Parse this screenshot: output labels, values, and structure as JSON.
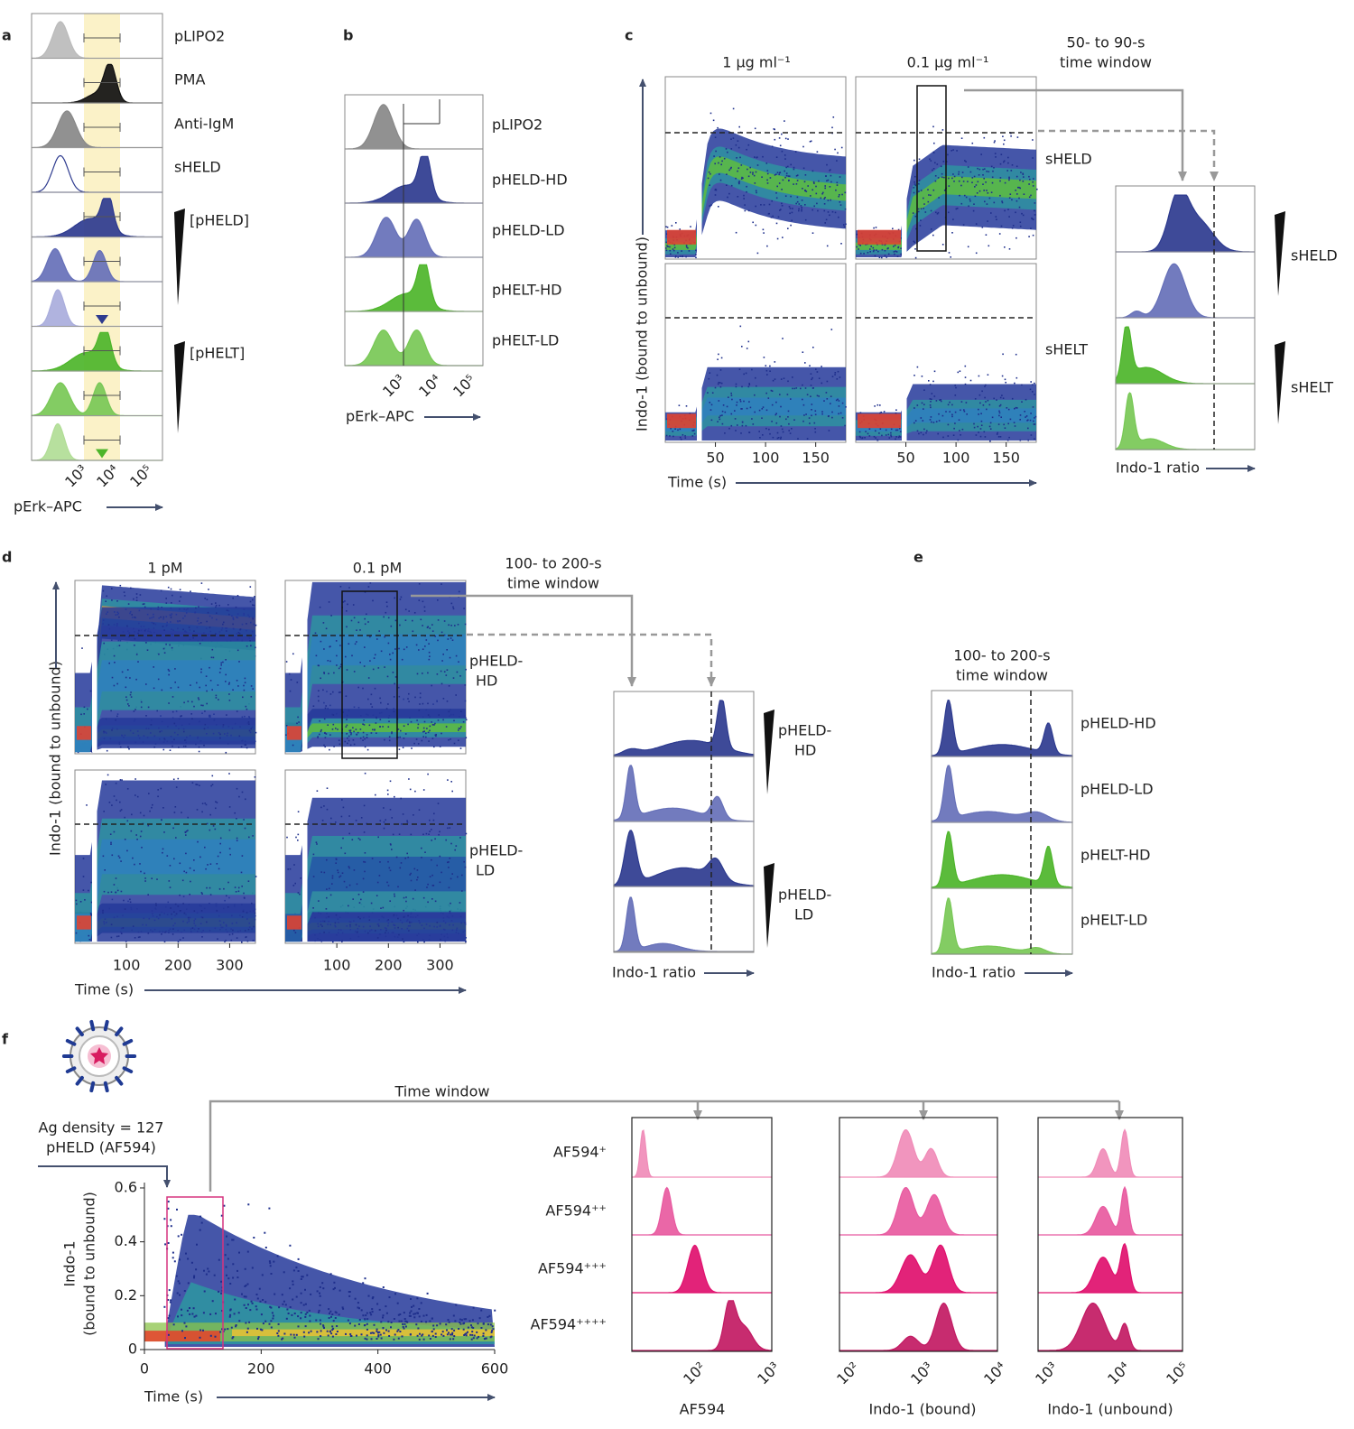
{
  "panels": {
    "a": {
      "label": "a",
      "rows": [
        "pLIPO2",
        "PMA",
        "Anti-IgM",
        "sHELD"
      ],
      "groups": [
        "[pHELD]",
        "[pHELT]"
      ],
      "xticks": [
        "10³",
        "10⁴",
        "10⁵"
      ],
      "xlabel": "pErk–APC"
    },
    "b": {
      "label": "b",
      "rows": [
        "pLIPO2",
        "pHELD-HD",
        "pHELD-LD",
        "pHELT-HD",
        "pHELT-LD"
      ],
      "xticks": [
        "10³",
        "10⁴",
        "10⁵"
      ],
      "xlabel": "pErk–APC"
    },
    "c": {
      "label": "c",
      "columns": [
        "1 μg ml⁻¹",
        "0.1 μg ml⁻¹"
      ],
      "rows": [
        "sHELD",
        "sHELT"
      ],
      "window": [
        "50- to 90-s",
        "time window"
      ],
      "ylabel": "Indo-1 (bound to unbound)",
      "xlabel": "Time (s)",
      "xlim": [
        0,
        180
      ],
      "xticks": [
        50,
        100,
        150
      ],
      "hist_xlabel": "Indo-1 ratio"
    },
    "d": {
      "label": "d",
      "columns": [
        "1 pM",
        "0.1 pM"
      ],
      "rows": [
        [
          "pHELD-",
          "HD"
        ],
        [
          "pHELD-",
          "LD"
        ]
      ],
      "window": [
        "100- to 200-s",
        "time window"
      ],
      "ylabel": "Indo-1 (bound to unbound)",
      "xlabel": "Time (s)",
      "xlim": [
        0,
        350
      ],
      "xticks": [
        100,
        200,
        300
      ],
      "hist_xlabel": "Indo-1 ratio"
    },
    "e": {
      "label": "e",
      "window": [
        "100- to 200-s",
        "time window"
      ],
      "rows": [
        "pHELD-HD",
        "pHELD-LD",
        "pHELT-HD",
        "pHELT-LD"
      ],
      "xlabel": "Indo-1 ratio"
    },
    "f": {
      "label": "f",
      "annotation": [
        "Ag density = 127",
        "pHELD (AF594)"
      ],
      "window": "Time window",
      "ylabel": [
        "Indo-1",
        "(bound to unbound)"
      ],
      "xlabel": "Time (s)",
      "xlim": [
        0,
        600
      ],
      "xticks": [
        0,
        200,
        400,
        600
      ],
      "ylim": [
        0,
        0.62
      ],
      "yticks": [
        0,
        0.2,
        0.4,
        0.6
      ],
      "rows": [
        "AF594⁺",
        "AF594⁺⁺",
        "AF594⁺⁺⁺",
        "AF594⁺⁺⁺⁺"
      ],
      "hist": [
        {
          "xlabel": "AF594",
          "xticks": [
            "10²",
            "10³"
          ]
        },
        {
          "xlabel": "Indo-1 (bound)",
          "xticks": [
            "10²",
            "10³",
            "10⁴"
          ]
        },
        {
          "xlabel": "Indo-1 (unbound)",
          "xticks": [
            "10³",
            "10⁴",
            "10⁵"
          ]
        }
      ]
    }
  }
}
